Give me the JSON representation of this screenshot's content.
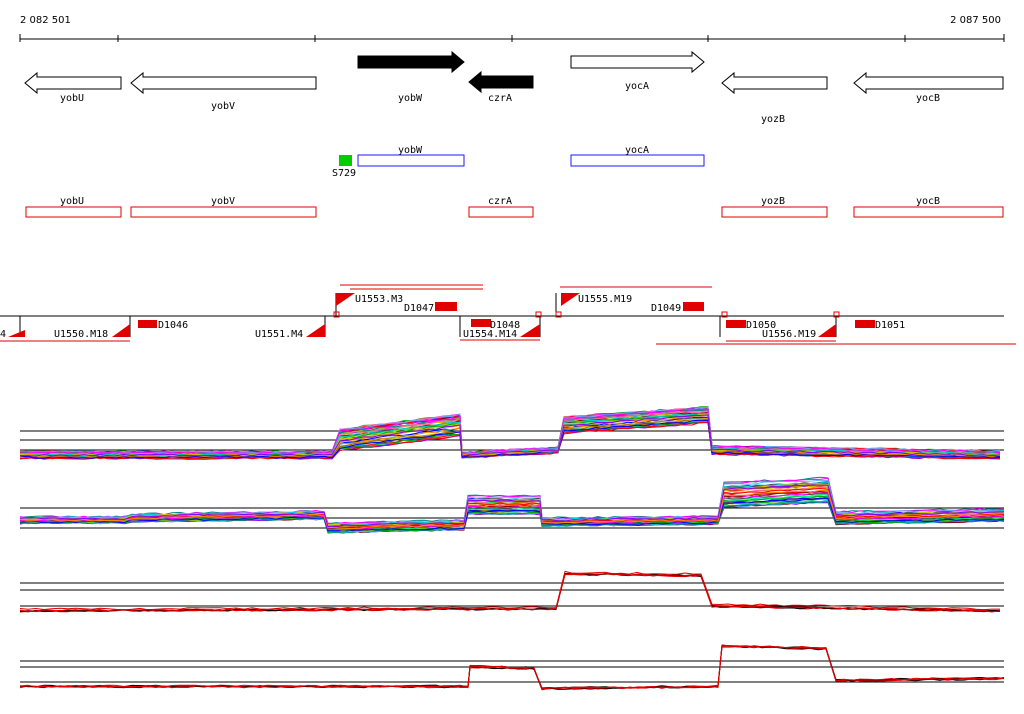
{
  "ruler": {
    "start_label": "2 082 501",
    "end_label": "2 087 500"
  },
  "colors": {
    "forward_gene": "#000000",
    "outline_gene": "#000000",
    "blue_box": "#1a1aff",
    "red_box": "#e00000",
    "green_marker": "#00cc00",
    "sample_black": "#000000",
    "sample_red": "#e00000"
  },
  "annotated_genes": [
    {
      "name": "yobU",
      "strand": "-",
      "filled": false
    },
    {
      "name": "yobV",
      "strand": "-",
      "filled": false
    },
    {
      "name": "yobW",
      "strand": "+",
      "filled": true
    },
    {
      "name": "czrA",
      "strand": "-",
      "filled": true
    },
    {
      "name": "yocA",
      "strand": "+",
      "filled": false
    },
    {
      "name": "yozB",
      "strand": "-",
      "filled": false
    },
    {
      "name": "yocB",
      "strand": "-",
      "filled": false
    }
  ],
  "blue_track": [
    {
      "name": "yobW"
    },
    {
      "name": "yocA"
    }
  ],
  "green_marker_label": "S729",
  "red_track": [
    {
      "name": "yobU"
    },
    {
      "name": "yobV"
    },
    {
      "name": "czrA"
    },
    {
      "name": "yozB"
    },
    {
      "name": "yocB"
    }
  ],
  "upshift_labels": [
    "4",
    "U1550.M18",
    "U1551.M4",
    "U1553.M3",
    "U1554.M14",
    "U1555.M19",
    "U1556.M19"
  ],
  "downshift_labels": [
    "D1046",
    "D1047",
    "D1048",
    "D1049",
    "D1050",
    "D1051"
  ]
}
